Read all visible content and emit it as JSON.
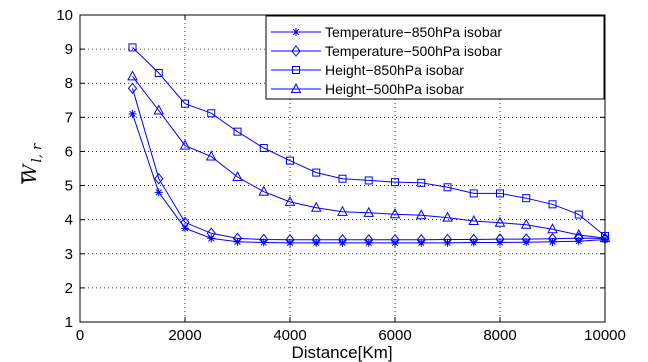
{
  "chart_data": {
    "type": "line",
    "title": "",
    "xlabel": "Distance[Km]",
    "ylabel_main": "W",
    "ylabel_sub": "l, r",
    "xlim": [
      0,
      10000
    ],
    "ylim": [
      1,
      10
    ],
    "x_ticks": [
      0,
      2000,
      4000,
      6000,
      8000,
      10000
    ],
    "y_ticks": [
      1,
      2,
      3,
      4,
      5,
      6,
      7,
      8,
      9,
      10
    ],
    "grid": true,
    "legend_position": "top-right",
    "line_color": "#0000ff",
    "x": [
      1000,
      1500,
      2000,
      2500,
      3000,
      3500,
      4000,
      4500,
      5000,
      5500,
      6000,
      6500,
      7000,
      7500,
      8000,
      8500,
      9000,
      9500,
      10000
    ],
    "series": [
      {
        "name": "Temperature−850hPa isobar",
        "marker": "asterisk",
        "values": [
          7.1,
          4.8,
          3.75,
          3.45,
          3.35,
          3.33,
          3.32,
          3.32,
          3.32,
          3.32,
          3.32,
          3.32,
          3.32,
          3.33,
          3.33,
          3.34,
          3.35,
          3.37,
          3.42
        ]
      },
      {
        "name": "Temperature−500hPa isobar",
        "marker": "diamond",
        "values": [
          7.85,
          5.2,
          3.92,
          3.6,
          3.45,
          3.42,
          3.41,
          3.41,
          3.41,
          3.41,
          3.41,
          3.41,
          3.42,
          3.42,
          3.43,
          3.43,
          3.44,
          3.46,
          3.45
        ]
      },
      {
        "name": "Height−850hPa isobar",
        "marker": "square",
        "values": [
          9.05,
          8.3,
          7.4,
          7.12,
          6.58,
          6.1,
          5.73,
          5.38,
          5.2,
          5.15,
          5.1,
          5.08,
          4.95,
          4.77,
          4.77,
          4.63,
          4.45,
          4.15,
          3.52
        ]
      },
      {
        "name": "Height−500hPa isobar",
        "marker": "triangle",
        "values": [
          8.2,
          7.2,
          6.17,
          5.85,
          5.25,
          4.82,
          4.52,
          4.35,
          4.23,
          4.2,
          4.16,
          4.13,
          4.06,
          3.96,
          3.91,
          3.85,
          3.72,
          3.55,
          3.46
        ]
      }
    ]
  }
}
